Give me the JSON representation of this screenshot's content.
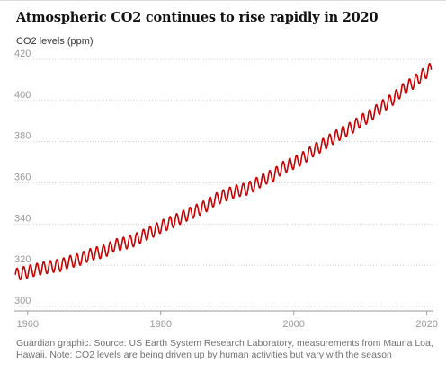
{
  "title": "Atmospheric CO2 continues to rise rapidly in 2020",
  "footnote": "Guardian graphic. Source: US Earth System Research Laboratory, measurements from Mauna Loa, Hawaii. Note: CO2 levels are being driven up by human activities but vary with the season",
  "chart_data": {
    "type": "line",
    "title": "Atmospheric CO2 continues to rise rapidly in 2020",
    "ylabel": "CO2 levels (ppm)",
    "xlabel": "",
    "xlim": [
      1958,
      2021
    ],
    "ylim": [
      300,
      420
    ],
    "x_ticks": [
      1960,
      1980,
      2000,
      2020
    ],
    "x_tick_labels": [
      "1960",
      "1980",
      "2000",
      "2020"
    ],
    "y_ticks": [
      300,
      320,
      340,
      360,
      380,
      400,
      420
    ],
    "y_tick_labels": [
      "300",
      "320",
      "340",
      "360",
      "380",
      "400",
      "420"
    ],
    "grid": "horizontal dotted",
    "legend": "none",
    "line_color": "#c70000",
    "series": [
      {
        "seasonal_amplitude_ppm": 3,
        "annual_means": [
          [
            1958,
            315.3
          ],
          [
            1959,
            316.0
          ],
          [
            1960,
            316.9
          ],
          [
            1961,
            317.6
          ],
          [
            1962,
            318.4
          ],
          [
            1963,
            319.0
          ],
          [
            1964,
            319.6
          ],
          [
            1965,
            320.0
          ],
          [
            1966,
            321.4
          ],
          [
            1967,
            322.2
          ],
          [
            1968,
            323.1
          ],
          [
            1969,
            324.6
          ],
          [
            1970,
            325.7
          ],
          [
            1971,
            326.3
          ],
          [
            1972,
            327.5
          ],
          [
            1973,
            329.7
          ],
          [
            1974,
            330.2
          ],
          [
            1975,
            331.1
          ],
          [
            1976,
            332.1
          ],
          [
            1977,
            333.8
          ],
          [
            1978,
            335.4
          ],
          [
            1979,
            336.8
          ],
          [
            1980,
            338.7
          ],
          [
            1981,
            340.1
          ],
          [
            1982,
            341.4
          ],
          [
            1983,
            343.0
          ],
          [
            1984,
            344.6
          ],
          [
            1985,
            346.0
          ],
          [
            1986,
            347.4
          ],
          [
            1987,
            349.2
          ],
          [
            1988,
            351.6
          ],
          [
            1989,
            353.1
          ],
          [
            1990,
            354.4
          ],
          [
            1991,
            355.6
          ],
          [
            1992,
            356.5
          ],
          [
            1993,
            357.1
          ],
          [
            1994,
            358.8
          ],
          [
            1995,
            360.8
          ],
          [
            1996,
            362.6
          ],
          [
            1997,
            363.7
          ],
          [
            1998,
            366.7
          ],
          [
            1999,
            368.4
          ],
          [
            2000,
            369.7
          ],
          [
            2001,
            371.3
          ],
          [
            2002,
            373.4
          ],
          [
            2003,
            375.9
          ],
          [
            2004,
            377.7
          ],
          [
            2005,
            379.8
          ],
          [
            2006,
            381.9
          ],
          [
            2007,
            383.8
          ],
          [
            2008,
            385.6
          ],
          [
            2009,
            387.4
          ],
          [
            2010,
            389.9
          ],
          [
            2011,
            391.7
          ],
          [
            2012,
            393.9
          ],
          [
            2013,
            396.5
          ],
          [
            2014,
            398.7
          ],
          [
            2015,
            400.9
          ],
          [
            2016,
            404.2
          ],
          [
            2017,
            406.6
          ],
          [
            2018,
            408.7
          ],
          [
            2019,
            411.4
          ],
          [
            2020,
            413.9
          ]
        ]
      }
    ]
  }
}
